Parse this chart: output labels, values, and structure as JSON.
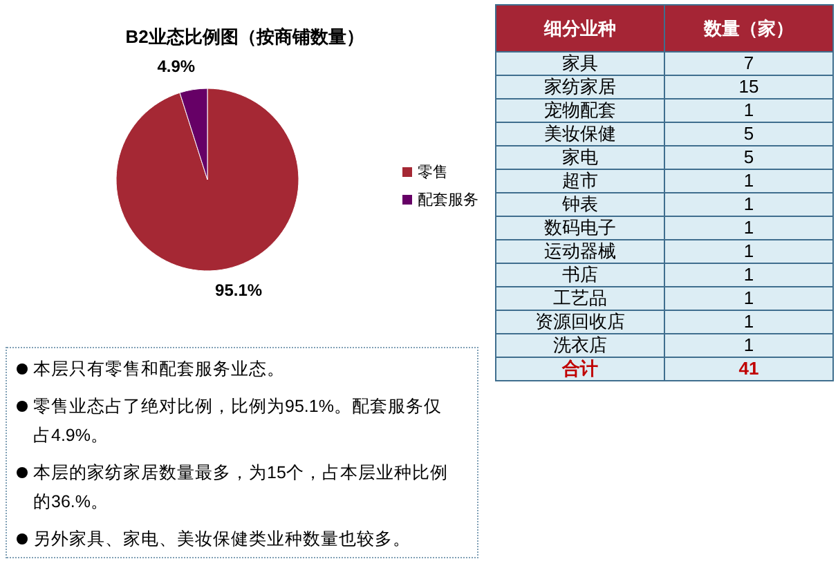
{
  "chart_data": [
    {
      "type": "pie",
      "title": "B2业态比例图（按商铺数量）",
      "categories": [
        "零售",
        "配套服务"
      ],
      "values": [
        95.1,
        4.9
      ],
      "colors": [
        "#a52834",
        "#660066"
      ],
      "value_labels": [
        "95.1%",
        "4.9%"
      ],
      "legend": "right"
    },
    {
      "type": "other",
      "xlabel": "细分业种",
      "ylabel": "数量（家）",
      "categories": [
        "家具",
        "家纺家居",
        "宠物配套",
        "美妆保健",
        "家电",
        "超市",
        "钟表",
        "数码电子",
        "运动器械",
        "书店",
        "工艺品",
        "资源回收店",
        "洗衣店"
      ],
      "values": [
        7,
        15,
        1,
        5,
        5,
        1,
        1,
        1,
        1,
        1,
        1,
        1,
        1
      ],
      "data_labels": true,
      "annotations": [
        "合计"
      ],
      "totals": [
        "41"
      ]
    },
    {
      "type": "other",
      "annotations": [
        "本层只有零售和配套服务业态。",
        "零售业态占了绝对比例，比例为95.1%。配套服务仅占4.9%。",
        "本层的家纺家居数量最多，为15个，占本层业种比例的36.%。",
        "另外家具、家电、美妆保健类业种数量也较多。"
      ]
    }
  ]
}
